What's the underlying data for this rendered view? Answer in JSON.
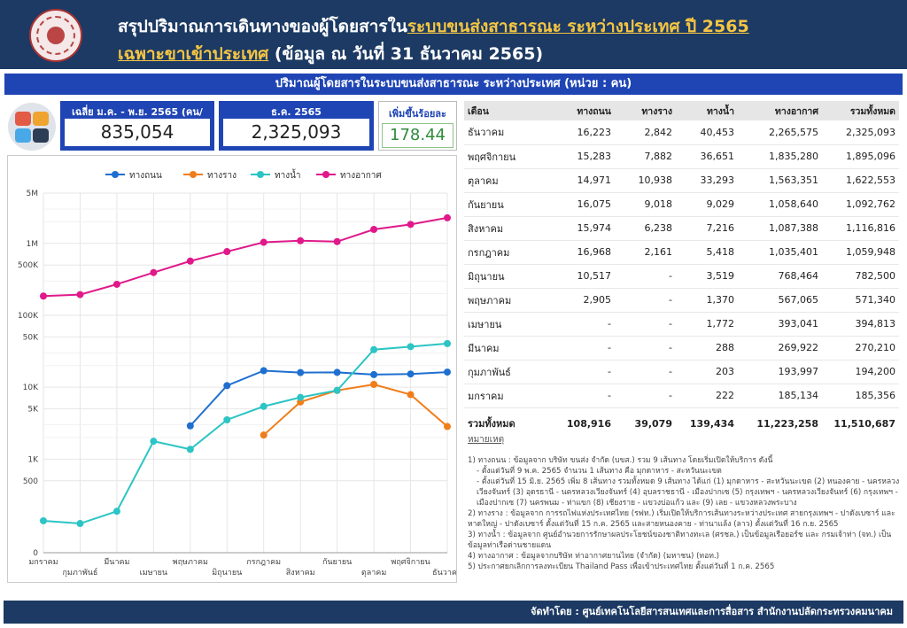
{
  "header": {
    "title_line1_prefix": "สรุปปริมาณการเดินทางของผู้โดยสารใน",
    "title_line1_highlight": "ระบบขนส่งสาธารณะ ระหว่างประเทศ ปี 2565",
    "title_line2_highlight": "เฉพาะขาเข้าประเทศ",
    "title_line2_suffix": " (ข้อมูล ณ วันที่ 31 ธันวาคม 2565)"
  },
  "subheader": "ปริมาณผู้โดยสารในระบบขนส่งสาธารณะ ระหว่างประเทศ (หน่วย : คน)",
  "kpis": {
    "avg_label": "เฉลี่ย ม.ค. - พ.ย. 2565 (คน/เดือน)",
    "avg_value": "835,054",
    "dec_label": "ธ.ค. 2565",
    "dec_value": "2,325,093",
    "increase_label": "เพิ่มขึ้นร้อยละ",
    "increase_value": "178.44"
  },
  "colors": {
    "header_bg": "#1c3a63",
    "accent_blue": "#1f45b5",
    "road": "#1f6fd0",
    "rail": "#f07d1a",
    "water": "#2cc4c4",
    "air": "#e0198a"
  },
  "chart_data": {
    "type": "line",
    "y_scale": "symlog",
    "x": [
      "มกราคม",
      "กุมภาพันธ์",
      "มีนาคม",
      "เมษายน",
      "พฤษภาคม",
      "มิถุนายน",
      "กรกฎาคม",
      "สิงหาคม",
      "กันยายน",
      "ตุลาคม",
      "พฤศจิกายน",
      "ธันวาคม"
    ],
    "yticks": [
      0,
      500,
      1000,
      5000,
      10000,
      50000,
      100000,
      500000,
      1000000,
      5000000
    ],
    "ytick_labels": [
      "0",
      "500",
      "1K",
      "5K",
      "10K",
      "50K",
      "100K",
      "500K",
      "1M",
      "5M"
    ],
    "series": [
      {
        "name": "ทางถนน",
        "color": "#1f6fd0",
        "values": [
          null,
          null,
          null,
          null,
          2905,
          10517,
          16968,
          15974,
          16075,
          14971,
          15283,
          16223
        ]
      },
      {
        "name": "ทางราง",
        "color": "#f07d1a",
        "values": [
          null,
          null,
          null,
          null,
          null,
          null,
          2161,
          6238,
          9018,
          10938,
          7882,
          2842
        ]
      },
      {
        "name": "ทางน้ำ",
        "color": "#2cc4c4",
        "values": [
          222,
          203,
          288,
          1772,
          1370,
          3519,
          5418,
          7216,
          9029,
          33293,
          36651,
          40453
        ]
      },
      {
        "name": "ทางอากาศ",
        "color": "#e0198a",
        "values": [
          185134,
          193997,
          269922,
          393041,
          567065,
          768464,
          1035401,
          1087388,
          1058640,
          1563351,
          1835280,
          2265575
        ]
      }
    ]
  },
  "table": {
    "headers": [
      "เดือน",
      "ทางถนน",
      "ทางราง",
      "ทางน้ำ",
      "ทางอากาศ",
      "รวมทั้งหมด"
    ],
    "rows": [
      [
        "ธันวาคม",
        "16,223",
        "2,842",
        "40,453",
        "2,265,575",
        "2,325,093"
      ],
      [
        "พฤศจิกายน",
        "15,283",
        "7,882",
        "36,651",
        "1,835,280",
        "1,895,096"
      ],
      [
        "ตุลาคม",
        "14,971",
        "10,938",
        "33,293",
        "1,563,351",
        "1,622,553"
      ],
      [
        "กันยายน",
        "16,075",
        "9,018",
        "9,029",
        "1,058,640",
        "1,092,762"
      ],
      [
        "สิงหาคม",
        "15,974",
        "6,238",
        "7,216",
        "1,087,388",
        "1,116,816"
      ],
      [
        "กรกฎาคม",
        "16,968",
        "2,161",
        "5,418",
        "1,035,401",
        "1,059,948"
      ],
      [
        "มิถุนายน",
        "10,517",
        "-",
        "3,519",
        "768,464",
        "782,500"
      ],
      [
        "พฤษภาคม",
        "2,905",
        "-",
        "1,370",
        "567,065",
        "571,340"
      ],
      [
        "เมษายน",
        "-",
        "-",
        "1,772",
        "393,041",
        "394,813"
      ],
      [
        "มีนาคม",
        "-",
        "-",
        "288",
        "269,922",
        "270,210"
      ],
      [
        "กุมภาพันธ์",
        "-",
        "-",
        "203",
        "193,997",
        "194,200"
      ],
      [
        "มกราคม",
        "-",
        "-",
        "222",
        "185,134",
        "185,356"
      ]
    ],
    "total": [
      "รวมทั้งหมด",
      "108,916",
      "39,079",
      "139,434",
      "11,223,258",
      "11,510,687"
    ]
  },
  "notes": {
    "title": "หมายเหตุ",
    "lines": [
      "1) ทางถนน : ข้อมูลจาก บริษัท ขนส่ง จำกัด (บขส.) รวม 9 เส้นทาง โดยเริ่มเปิดให้บริการ ดังนี้",
      "- ตั้งแต่วันที่ 9 พ.ค. 2565 จำนวน 1 เส้นทาง คือ มุกดาหาร - สะหวันนะเขต",
      "- ตั้งแต่วันที่ 15 มิ.ย. 2565 เพิ่ม 8 เส้นทาง รวมทั้งหมด 9 เส้นทาง ได้แก่ (1) มุกดาหาร - สะหวันนะเขต (2) หนองคาย - นครหลวงเวียงจันทร์ (3) อุดรธานี - นครหลวงเวียงจันทร์ (4) อุบลราชธานี - เมืองปากเซ (5) กรุงเทพฯ - นครหลวงเวียงจันทร์ (6) กรุงเทพฯ - เมืองปากเซ (7) นครพนม - ท่าแขก (8) เชียงราย - แขวงบ่อแก้ว และ (9) เลย - แขวงหลวงพระบาง",
      "2) ทางราง : ข้อมูลจาก การรถไฟแห่งประเทศไทย (รฟท.) เริ่มเปิดให้บริการเส้นทางระหว่างประเทศ สายกรุงเทพฯ - ปาดังเบซาร์ และ หาดใหญ่ - ปาดังเบซาร์ ตั้งแต่วันที่ 15 ก.ค. 2565 และสายหนองคาย - ท่านาแล้ง (ลาว) ตั้งแต่วันที่ 16 ก.ย. 2565",
      "3) ทางน้ำ : ข้อมูลจาก ศูนย์อำนวยการรักษาผลประโยชน์ของชาติทางทะเล (ศรชล.) เป็นข้อมูลเรือยอร์ช และ กรมเจ้าท่า (จท.) เป็นข้อมูลท่าเรือด่านชายแดน",
      "4) ทางอากาศ : ข้อมูลจากบริษัท ท่าอากาศยานไทย (จำกัด) (มหาชน) (ทอท.)",
      "5) ประกาศยกเลิกการลงทะเบียน Thailand Pass เพื่อเข้าประเทศไทย ตั้งแต่วันที่ 1 ก.ค. 2565"
    ]
  },
  "footer": "จัดทำโดย : ศูนย์เทคโนโลยีสารสนเทศและการสื่อสาร สำนักงานปลัดกระทรวงคมนาคม"
}
